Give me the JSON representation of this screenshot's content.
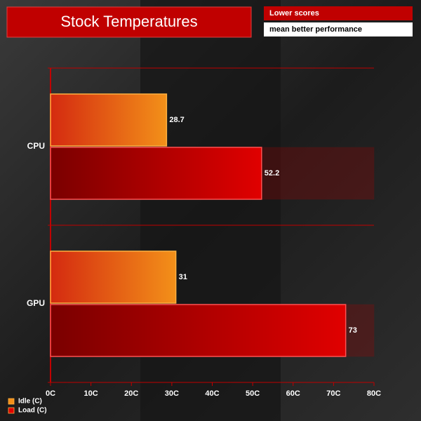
{
  "chart_data": {
    "type": "bar",
    "orientation": "horizontal",
    "title": "Stock Temperatures",
    "notes": [
      "Lower scores",
      "mean better performance"
    ],
    "categories": [
      "CPU",
      "GPU"
    ],
    "series": [
      {
        "name": "Idle (C)",
        "color": "#f39019",
        "values": [
          28.7,
          31
        ]
      },
      {
        "name": "Load (C)",
        "color": "#e00000",
        "values": [
          52.2,
          73
        ]
      }
    ],
    "xlim": [
      0,
      80
    ],
    "xticks": [
      {
        "value": 0,
        "label": "0C"
      },
      {
        "value": 10,
        "label": "10C"
      },
      {
        "value": 20,
        "label": "20C"
      },
      {
        "value": 30,
        "label": "30C"
      },
      {
        "value": 40,
        "label": "40C"
      },
      {
        "value": 50,
        "label": "50C"
      },
      {
        "value": 60,
        "label": "60C"
      },
      {
        "value": 70,
        "label": "70C"
      },
      {
        "value": 80,
        "label": "80C"
      }
    ],
    "legend": "bottom-left"
  }
}
